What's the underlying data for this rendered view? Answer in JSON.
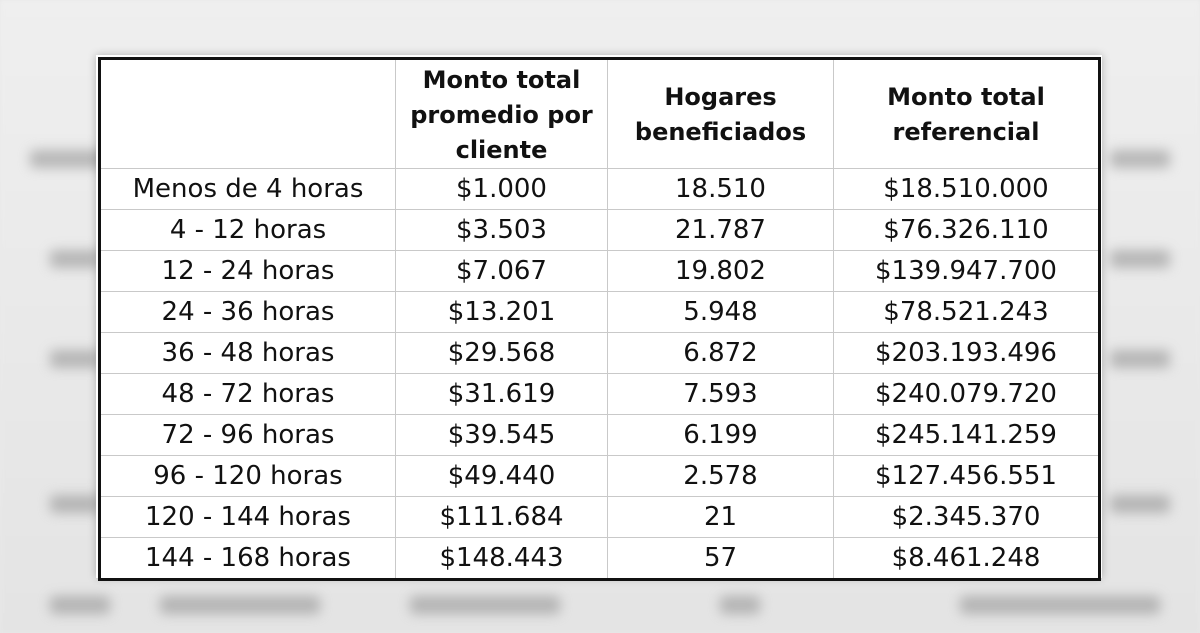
{
  "table": {
    "headers": [
      "",
      "Monto total promedio por cliente",
      "Hogares beneficiados",
      "Monto total referencial"
    ],
    "rows": [
      [
        "Menos de 4 horas",
        "$1.000",
        "18.510",
        "$18.510.000"
      ],
      [
        "4 - 12 horas",
        "$3.503",
        "21.787",
        "$76.326.110"
      ],
      [
        "12 - 24 horas",
        "$7.067",
        "19.802",
        "$139.947.700"
      ],
      [
        "24 - 36 horas",
        "$13.201",
        "5.948",
        "$78.521.243"
      ],
      [
        "36 - 48 horas",
        "$29.568",
        "6.872",
        "$203.193.496"
      ],
      [
        "48 - 72 horas",
        "$31.619",
        "7.593",
        "$240.079.720"
      ],
      [
        "72 - 96 horas",
        "$39.545",
        "6.199",
        "$245.141.259"
      ],
      [
        "96 - 120 horas",
        "$49.440",
        "2.578",
        "$127.456.551"
      ],
      [
        "120 - 144 horas",
        "$111.684",
        "21",
        "$2.345.370"
      ],
      [
        "144 - 168 horas",
        "$148.443",
        "57",
        "$8.461.248"
      ]
    ]
  },
  "colors": {
    "border": "#111111",
    "grid": "#c9c9c9",
    "background": "#e9e9e9"
  }
}
